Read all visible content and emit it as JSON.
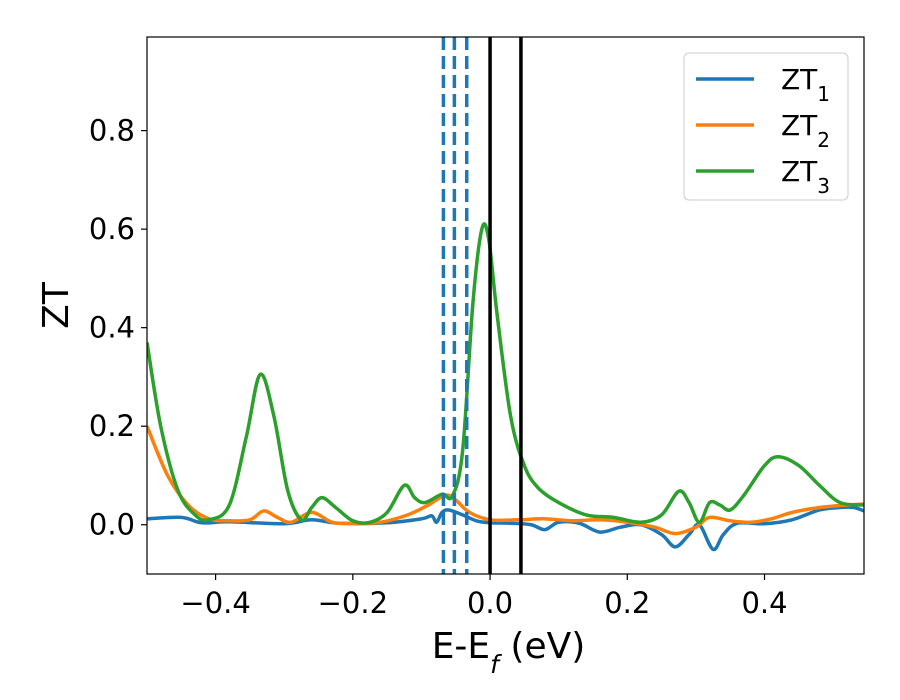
{
  "chart_data": {
    "type": "line",
    "xlabel_main": "E-E",
    "xlabel_sub": "f",
    "xlabel_unit": " (eV)",
    "ylabel": "ZT",
    "xlim": [
      -0.5,
      0.545
    ],
    "ylim": [
      -0.1,
      0.99
    ],
    "grid": false,
    "legend_placement": "top-right",
    "xticks": [
      {
        "value": -0.4,
        "label": "−0.4"
      },
      {
        "value": -0.2,
        "label": "−0.2"
      },
      {
        "value": 0.0,
        "label": "0.0"
      },
      {
        "value": 0.2,
        "label": "0.2"
      },
      {
        "value": 0.4,
        "label": "0.4"
      }
    ],
    "yticks": [
      {
        "value": 0.0,
        "label": "0.0"
      },
      {
        "value": 0.2,
        "label": "0.2"
      },
      {
        "value": 0.4,
        "label": "0.4"
      },
      {
        "value": 0.6,
        "label": "0.6"
      },
      {
        "value": 0.8,
        "label": "0.8"
      }
    ],
    "vlines": [
      {
        "x": -0.068,
        "style": "dashed",
        "color": "#1f77b4"
      },
      {
        "x": -0.052,
        "style": "dashed",
        "color": "#1f77b4"
      },
      {
        "x": -0.034,
        "style": "dashed",
        "color": "#1f77b4"
      },
      {
        "x": 0.0,
        "style": "solid",
        "color": "#000000"
      },
      {
        "x": 0.045,
        "style": "solid",
        "color": "#000000"
      }
    ],
    "series": [
      {
        "name": "ZT",
        "sub": "1",
        "color": "#1f77b4",
        "points": [
          [
            -0.5,
            0.012
          ],
          [
            -0.45,
            0.015
          ],
          [
            -0.42,
            0.004
          ],
          [
            -0.38,
            0.006
          ],
          [
            -0.3,
            0.002
          ],
          [
            -0.26,
            0.01
          ],
          [
            -0.22,
            0.003
          ],
          [
            -0.15,
            0.004
          ],
          [
            -0.1,
            0.012
          ],
          [
            -0.085,
            0.018
          ],
          [
            -0.078,
            0.005
          ],
          [
            -0.07,
            0.025
          ],
          [
            -0.06,
            0.03
          ],
          [
            -0.04,
            0.02
          ],
          [
            -0.02,
            0.008
          ],
          [
            0.0,
            0.004
          ],
          [
            0.03,
            0.003
          ],
          [
            0.06,
            0.0
          ],
          [
            0.08,
            -0.01
          ],
          [
            0.1,
            0.005
          ],
          [
            0.13,
            0.003
          ],
          [
            0.16,
            -0.015
          ],
          [
            0.19,
            -0.005
          ],
          [
            0.22,
            0.0
          ],
          [
            0.25,
            -0.02
          ],
          [
            0.27,
            -0.045
          ],
          [
            0.29,
            -0.02
          ],
          [
            0.305,
            0.0
          ],
          [
            0.325,
            -0.05
          ],
          [
            0.34,
            -0.02
          ],
          [
            0.36,
            0.003
          ],
          [
            0.4,
            0.002
          ],
          [
            0.44,
            0.01
          ],
          [
            0.48,
            0.03
          ],
          [
            0.51,
            0.035
          ],
          [
            0.53,
            0.035
          ],
          [
            0.545,
            0.028
          ]
        ]
      },
      {
        "name": "ZT",
        "sub": "2",
        "color": "#ff7f0e",
        "points": [
          [
            -0.5,
            0.2
          ],
          [
            -0.47,
            0.1
          ],
          [
            -0.44,
            0.04
          ],
          [
            -0.41,
            0.012
          ],
          [
            -0.38,
            0.008
          ],
          [
            -0.35,
            0.01
          ],
          [
            -0.33,
            0.028
          ],
          [
            -0.31,
            0.015
          ],
          [
            -0.29,
            0.005
          ],
          [
            -0.26,
            0.025
          ],
          [
            -0.23,
            0.005
          ],
          [
            -0.2,
            0.003
          ],
          [
            -0.16,
            0.005
          ],
          [
            -0.12,
            0.02
          ],
          [
            -0.09,
            0.04
          ],
          [
            -0.065,
            0.06
          ],
          [
            -0.05,
            0.05
          ],
          [
            -0.03,
            0.025
          ],
          [
            0.0,
            0.01
          ],
          [
            0.04,
            0.01
          ],
          [
            0.08,
            0.012
          ],
          [
            0.12,
            0.008
          ],
          [
            0.16,
            0.01
          ],
          [
            0.2,
            0.005
          ],
          [
            0.24,
            -0.005
          ],
          [
            0.27,
            -0.018
          ],
          [
            0.3,
            -0.005
          ],
          [
            0.32,
            0.015
          ],
          [
            0.35,
            0.008
          ],
          [
            0.38,
            0.005
          ],
          [
            0.41,
            0.012
          ],
          [
            0.44,
            0.025
          ],
          [
            0.48,
            0.035
          ],
          [
            0.52,
            0.04
          ],
          [
            0.545,
            0.042
          ]
        ]
      },
      {
        "name": "ZT",
        "sub": "3",
        "color": "#2ca02c",
        "points": [
          [
            -0.5,
            0.37
          ],
          [
            -0.48,
            0.2
          ],
          [
            -0.455,
            0.07
          ],
          [
            -0.43,
            0.02
          ],
          [
            -0.41,
            0.01
          ],
          [
            -0.38,
            0.04
          ],
          [
            -0.355,
            0.18
          ],
          [
            -0.335,
            0.305
          ],
          [
            -0.315,
            0.22
          ],
          [
            -0.295,
            0.07
          ],
          [
            -0.275,
            0.01
          ],
          [
            -0.26,
            0.035
          ],
          [
            -0.245,
            0.055
          ],
          [
            -0.225,
            0.035
          ],
          [
            -0.2,
            0.008
          ],
          [
            -0.175,
            0.005
          ],
          [
            -0.15,
            0.025
          ],
          [
            -0.125,
            0.08
          ],
          [
            -0.11,
            0.055
          ],
          [
            -0.095,
            0.045
          ],
          [
            -0.07,
            0.062
          ],
          [
            -0.055,
            0.058
          ],
          [
            -0.04,
            0.15
          ],
          [
            -0.025,
            0.45
          ],
          [
            -0.012,
            0.6
          ],
          [
            -0.002,
            0.58
          ],
          [
            0.01,
            0.43
          ],
          [
            0.03,
            0.22
          ],
          [
            0.05,
            0.12
          ],
          [
            0.07,
            0.075
          ],
          [
            0.1,
            0.045
          ],
          [
            0.14,
            0.02
          ],
          [
            0.18,
            0.015
          ],
          [
            0.22,
            0.005
          ],
          [
            0.25,
            0.02
          ],
          [
            0.275,
            0.068
          ],
          [
            0.29,
            0.045
          ],
          [
            0.305,
            0.005
          ],
          [
            0.32,
            0.045
          ],
          [
            0.335,
            0.04
          ],
          [
            0.35,
            0.03
          ],
          [
            0.37,
            0.06
          ],
          [
            0.4,
            0.12
          ],
          [
            0.42,
            0.138
          ],
          [
            0.45,
            0.12
          ],
          [
            0.48,
            0.08
          ],
          [
            0.51,
            0.045
          ],
          [
            0.545,
            0.04
          ]
        ]
      }
    ]
  }
}
